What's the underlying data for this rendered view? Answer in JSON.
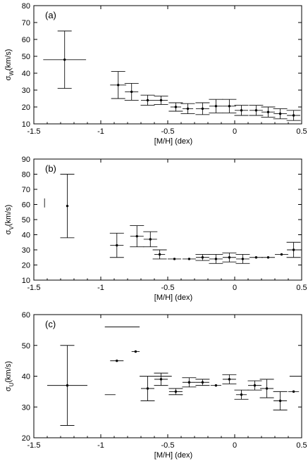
{
  "chart_data": [
    {
      "type": "scatter",
      "panel_label": "(a)",
      "xlabel": "[M/H] (dex)",
      "ylabel_main": "σ",
      "ylabel_sub": "W",
      "ylabel_rest": "(km/s)",
      "xlim": [
        -1.5,
        0.5
      ],
      "ylim": [
        10,
        80
      ],
      "xticks": [
        -1.5,
        -1,
        -0.5,
        0,
        0.5
      ],
      "xtick_labels": [
        "-1.5",
        "-1",
        "-0.5",
        "0",
        "0.5"
      ],
      "yticks": [
        10,
        20,
        30,
        40,
        50,
        60,
        70,
        80
      ],
      "ytick_labels": [
        "10",
        "20",
        "30",
        "40",
        "50",
        "60",
        "70",
        "80"
      ],
      "grid": false,
      "points": [
        {
          "x": -1.27,
          "y": 48,
          "xerr": 0.16,
          "yerr": 17
        },
        {
          "x": -0.87,
          "y": 33,
          "xerr": 0.06,
          "yerr": 8
        },
        {
          "x": -0.77,
          "y": 29,
          "xerr": 0.05,
          "yerr": 5
        },
        {
          "x": -0.65,
          "y": 24,
          "xerr": 0.05,
          "yerr": 3
        },
        {
          "x": -0.55,
          "y": 24,
          "xerr": 0.05,
          "yerr": 2.5
        },
        {
          "x": -0.44,
          "y": 20,
          "xerr": 0.04,
          "yerr": 2.5
        },
        {
          "x": -0.35,
          "y": 19,
          "xerr": 0.04,
          "yerr": 3
        },
        {
          "x": -0.24,
          "y": 19,
          "xerr": 0.05,
          "yerr": 3.5
        },
        {
          "x": -0.14,
          "y": 20.5,
          "xerr": 0.05,
          "yerr": 4
        },
        {
          "x": -0.04,
          "y": 20.5,
          "xerr": 0.05,
          "yerr": 4
        },
        {
          "x": 0.05,
          "y": 18,
          "xerr": 0.05,
          "yerr": 3
        },
        {
          "x": 0.16,
          "y": 18,
          "xerr": 0.05,
          "yerr": 3
        },
        {
          "x": 0.25,
          "y": 17,
          "xerr": 0.05,
          "yerr": 3
        },
        {
          "x": 0.34,
          "y": 16,
          "xerr": 0.05,
          "yerr": 3
        },
        {
          "x": 0.44,
          "y": 15,
          "xerr": 0.05,
          "yerr": 3
        }
      ]
    },
    {
      "type": "scatter",
      "panel_label": "(b)",
      "xlabel": "[M/H] (dex)",
      "ylabel_main": "σ",
      "ylabel_sub": "V",
      "ylabel_rest": "(km/s)",
      "xlim": [
        -1.5,
        0.5
      ],
      "ylim": [
        10,
        90
      ],
      "xticks": [
        -1.5,
        -1,
        -0.5,
        0,
        0.5
      ],
      "xtick_labels": [
        "-1.5",
        "-1",
        "-0.5",
        "0",
        "0.5"
      ],
      "yticks": [
        10,
        20,
        30,
        40,
        50,
        60,
        70,
        80,
        90
      ],
      "ytick_labels": [
        "10",
        "20",
        "30",
        "40",
        "50",
        "60",
        "70",
        "80",
        "90"
      ],
      "grid": false,
      "points": [
        {
          "x": -1.25,
          "y": 59,
          "xerr": 0,
          "yerr": 21
        },
        {
          "x": -0.88,
          "y": 33,
          "xerr": 0.05,
          "yerr": 8
        },
        {
          "x": -0.73,
          "y": 39,
          "xerr": 0.05,
          "yerr": 7
        },
        {
          "x": -0.63,
          "y": 37,
          "xerr": 0.05,
          "yerr": 5
        },
        {
          "x": -0.56,
          "y": 27,
          "xerr": 0.04,
          "yerr": 3
        },
        {
          "x": -0.45,
          "y": 24,
          "xerr": 0.05,
          "yerr": 0
        },
        {
          "x": -0.34,
          "y": 24,
          "xerr": 0.05,
          "yerr": 0
        },
        {
          "x": -0.24,
          "y": 25,
          "xerr": 0.05,
          "yerr": 2
        },
        {
          "x": -0.14,
          "y": 24,
          "xerr": 0.05,
          "yerr": 3
        },
        {
          "x": -0.04,
          "y": 25,
          "xerr": 0.05,
          "yerr": 3
        },
        {
          "x": 0.06,
          "y": 24,
          "xerr": 0.05,
          "yerr": 3
        },
        {
          "x": 0.16,
          "y": 25,
          "xerr": 0.05,
          "yerr": 0
        },
        {
          "x": 0.25,
          "y": 25,
          "xerr": 0.05,
          "yerr": 0
        },
        {
          "x": 0.35,
          "y": 27,
          "xerr": 0.05,
          "yerr": 0
        },
        {
          "x": 0.44,
          "y": 30,
          "xerr": 0.05,
          "yerr": 5
        }
      ],
      "stray_marks": [
        {
          "x": -1.42,
          "y1": 58,
          "y2": 64
        }
      ]
    },
    {
      "type": "scatter",
      "panel_label": "(c)",
      "xlabel": "[M/H] (dex)",
      "ylabel_main": "σ",
      "ylabel_sub": "U",
      "ylabel_rest": "(km/s)",
      "xlim": [
        -1.5,
        0.5
      ],
      "ylim": [
        20,
        60
      ],
      "xticks": [
        -1.5,
        -1,
        -0.5,
        0,
        0.5
      ],
      "xtick_labels": [
        "-1.5",
        "-1",
        "-0.5",
        "0",
        "0.5"
      ],
      "yticks": [
        20,
        30,
        40,
        50,
        60
      ],
      "ytick_labels": [
        "20",
        "30",
        "40",
        "50",
        "60"
      ],
      "grid": false,
      "points": [
        {
          "x": -1.25,
          "y": 37,
          "xerr": 0.15,
          "yerr": 13
        },
        {
          "x": -0.88,
          "y": 45,
          "xerr": 0.05,
          "yerr": 0
        },
        {
          "x": -0.74,
          "y": 48,
          "xerr": 0.03,
          "yerr": 0
        },
        {
          "x": -0.65,
          "y": 36,
          "xerr": 0.05,
          "yerr": 4
        },
        {
          "x": -0.55,
          "y": 39,
          "xerr": 0.05,
          "yerr": 2
        },
        {
          "x": -0.44,
          "y": 35,
          "xerr": 0.05,
          "yerr": 1
        },
        {
          "x": -0.34,
          "y": 38,
          "xerr": 0.05,
          "yerr": 1.5
        },
        {
          "x": -0.24,
          "y": 38,
          "xerr": 0.05,
          "yerr": 1
        },
        {
          "x": -0.14,
          "y": 37,
          "xerr": 0.04,
          "yerr": 0
        },
        {
          "x": -0.04,
          "y": 39,
          "xerr": 0.05,
          "yerr": 1.5
        },
        {
          "x": 0.05,
          "y": 34,
          "xerr": 0.04,
          "yerr": 1.5
        },
        {
          "x": 0.15,
          "y": 37,
          "xerr": 0.05,
          "yerr": 1.5
        },
        {
          "x": 0.24,
          "y": 36,
          "xerr": 0.05,
          "yerr": 3
        },
        {
          "x": 0.34,
          "y": 32,
          "xerr": 0.05,
          "yerr": 3
        },
        {
          "x": 0.44,
          "y": 35,
          "xerr": 0.04,
          "yerr": 0
        }
      ],
      "stray_marks": [
        {
          "x1": -0.97,
          "x2": -0.71,
          "y": 56
        },
        {
          "x1": -0.97,
          "x2": -0.89,
          "y": 34
        },
        {
          "x1": -0.71,
          "x2": -0.47,
          "y": 40
        },
        {
          "x1": 0.41,
          "x2": 0.5,
          "y": 40
        }
      ]
    }
  ]
}
